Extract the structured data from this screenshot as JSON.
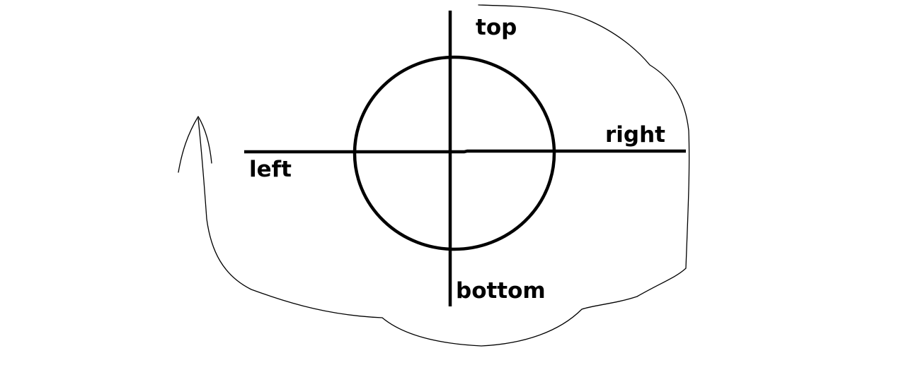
{
  "labels": {
    "top": "top",
    "right": "right",
    "left": "left",
    "bottom": "bottom"
  },
  "colors": {
    "stroke": "#000000",
    "background": "#ffffff"
  }
}
